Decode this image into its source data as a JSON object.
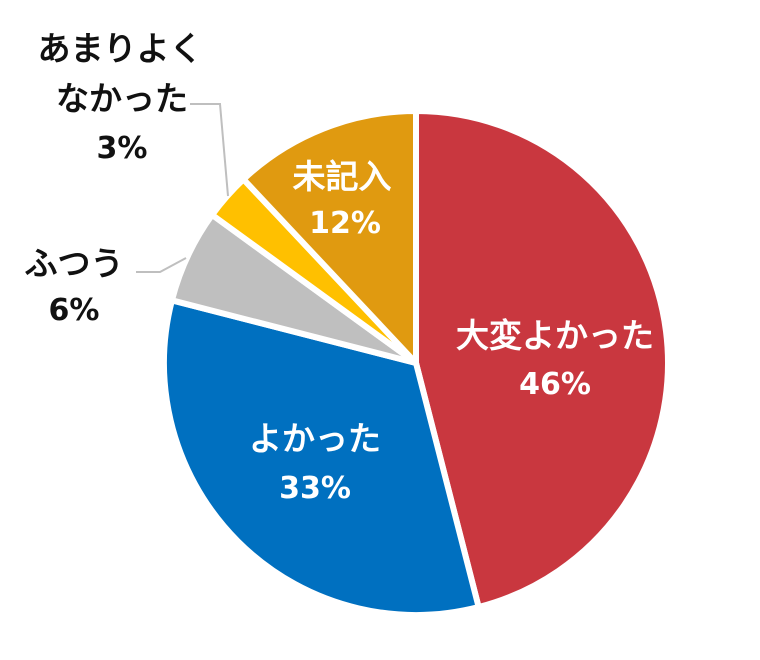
{
  "chart_data": {
    "type": "pie",
    "start_angle_deg": 0,
    "direction": "clockwise",
    "slices": [
      {
        "label": "大変よかった",
        "value": 46,
        "value_label": "46%",
        "color": "#C9373F"
      },
      {
        "label": "よかった",
        "value": 33,
        "value_label": "33%",
        "color": "#0070C0"
      },
      {
        "label": "ふつう",
        "value": 6,
        "value_label": "6%",
        "color": "#BFBFBF"
      },
      {
        "label": "あまりよくなかった",
        "label_lines": [
          "あまりよく",
          "なかった"
        ],
        "value": 3,
        "value_label": "3%",
        "color": "#FFC000"
      },
      {
        "label": "未記入",
        "value": 12,
        "value_label": "12%",
        "color": "#E09A10"
      }
    ]
  }
}
